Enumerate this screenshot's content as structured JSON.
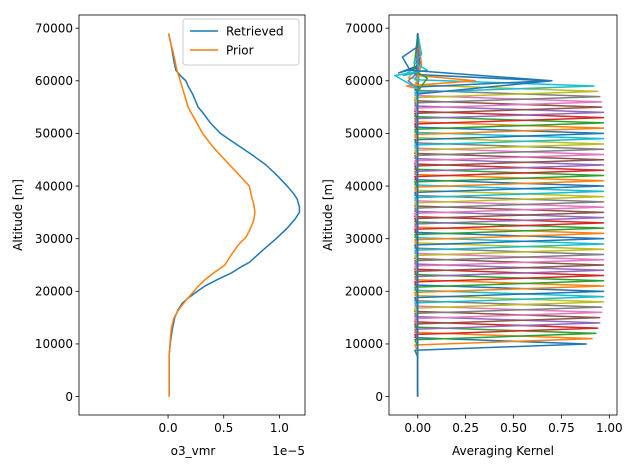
{
  "chart_data": [
    {
      "type": "line",
      "xlabel": "o3_vmr",
      "ylabel": "Altitude [m]",
      "x_scale_label": "1e−5",
      "xlim": [
        -8e-06,
        1.23e-05
      ],
      "ylim": [
        -3500,
        72500
      ],
      "xticks": [
        0,
        5e-06,
        1e-05
      ],
      "xtick_labels": [
        "0.0",
        "0.5",
        "1.0"
      ],
      "yticks": [
        0,
        10000,
        20000,
        30000,
        40000,
        50000,
        60000,
        70000
      ],
      "ytick_labels": [
        "0",
        "10000",
        "20000",
        "30000",
        "40000",
        "50000",
        "60000",
        "70000"
      ],
      "legend_position": "upper right",
      "series": [
        {
          "name": "Retrieved",
          "color": "#1f77b4",
          "points": [
            [
              1e-07,
              0
            ],
            [
              1e-07,
              8000
            ],
            [
              1.5e-07,
              9000
            ],
            [
              2.5e-07,
              11000
            ],
            [
              4e-07,
              13000
            ],
            [
              6e-07,
              15000
            ],
            [
              9e-07,
              16500
            ],
            [
              1.3e-06,
              17800
            ],
            [
              1.8e-06,
              18700
            ],
            [
              2.5e-06,
              19800
            ],
            [
              3.3e-06,
              21000
            ],
            [
              4.5e-06,
              22300
            ],
            [
              5.7e-06,
              23500
            ],
            [
              6.6e-06,
              24700
            ],
            [
              7.3e-06,
              25500
            ],
            [
              8.5e-06,
              27800
            ],
            [
              9.7e-06,
              30000
            ],
            [
              1.07e-05,
              32000
            ],
            [
              1.14e-05,
              33700
            ],
            [
              1.18e-05,
              35000
            ],
            [
              1.18e-05,
              36000
            ],
            [
              1.16e-05,
              37500
            ],
            [
              1.13e-05,
              38500
            ],
            [
              1.07e-05,
              40000
            ],
            [
              9.8e-06,
              42000
            ],
            [
              8.8e-06,
              44000
            ],
            [
              7.5e-06,
              46000
            ],
            [
              6.1e-06,
              48000
            ],
            [
              4.7e-06,
              50000
            ],
            [
              3.8e-06,
              52000
            ],
            [
              3.1e-06,
              54000
            ],
            [
              2.7e-06,
              55000
            ],
            [
              2.2e-06,
              57500
            ],
            [
              1.8e-06,
              59000
            ],
            [
              1.6e-06,
              60000
            ],
            [
              1.1e-06,
              61000
            ],
            [
              7e-07,
              62000
            ],
            [
              5e-07,
              64000
            ],
            [
              3e-07,
              66500
            ],
            [
              5e-08,
              69000
            ]
          ]
        },
        {
          "name": "Prior",
          "color": "#ff7f0e",
          "points": [
            [
              1e-07,
              0
            ],
            [
              1e-07,
              8000
            ],
            [
              1.5e-07,
              9000
            ],
            [
              2e-07,
              11000
            ],
            [
              3e-07,
              13000
            ],
            [
              5e-07,
              14800
            ],
            [
              8e-07,
              16000
            ],
            [
              1.2e-06,
              17200
            ],
            [
              1.7e-06,
              18500
            ],
            [
              2.2e-06,
              19700
            ],
            [
              2.6e-06,
              20700
            ],
            [
              3.2e-06,
              22000
            ],
            [
              4.1e-06,
              23500
            ],
            [
              5.1e-06,
              25000
            ],
            [
              5.7e-06,
              27000
            ],
            [
              6.3e-06,
              28800
            ],
            [
              7e-06,
              30300
            ],
            [
              7.3e-06,
              31500
            ],
            [
              7.7e-06,
              33500
            ],
            [
              7.8e-06,
              35000
            ],
            [
              7.7e-06,
              36500
            ],
            [
              7.5e-06,
              38000
            ],
            [
              7.3e-06,
              40000
            ],
            [
              6.2e-06,
              42500
            ],
            [
              5.1e-06,
              45000
            ],
            [
              4e-06,
              47500
            ],
            [
              3.1e-06,
              50000
            ],
            [
              1.8e-06,
              55000
            ],
            [
              1.1e-06,
              60000
            ],
            [
              8e-07,
              62000
            ],
            [
              5e-07,
              65000
            ],
            [
              2e-07,
              67500
            ],
            [
              5e-08,
              69000
            ]
          ]
        }
      ]
    },
    {
      "type": "line",
      "xlabel": "Averaging Kernel",
      "ylabel": "Altitude [m]",
      "xlim": [
        -0.15,
        1.04
      ],
      "ylim": [
        -3500,
        72500
      ],
      "xticks": [
        0,
        0.25,
        0.5,
        0.75,
        1.0
      ],
      "xtick_labels": [
        "0.00",
        "0.25",
        "0.50",
        "0.75",
        "1.00"
      ],
      "yticks": [
        0,
        10000,
        20000,
        30000,
        40000,
        50000,
        60000,
        70000
      ],
      "ytick_labels": [
        "0",
        "10000",
        "20000",
        "30000",
        "40000",
        "50000",
        "60000",
        "70000"
      ],
      "color_cycle": [
        "#1f77b4",
        "#ff7f0e",
        "#2ca02c",
        "#d62728",
        "#9467bd",
        "#8c564b",
        "#e377c2",
        "#7f7f7f",
        "#bcbd22",
        "#17becf"
      ],
      "altitude_levels": [
        0,
        69000
      ],
      "kernel_peak_altitudes": [
        10000,
        11000,
        12000,
        13000,
        14000,
        15000,
        16000,
        17000,
        18000,
        19000,
        20000,
        21000,
        22000,
        23000,
        24000,
        25000,
        26000,
        27000,
        28000,
        29000,
        30000,
        31000,
        32000,
        33000,
        34000,
        35000,
        36000,
        37000,
        38000,
        39000,
        40000,
        41000,
        42000,
        43000,
        44000,
        45000,
        46000,
        47000,
        48000,
        49000,
        50000,
        51000,
        52000,
        53000,
        54000,
        55000,
        56000,
        57000,
        58000,
        59000,
        60000
      ],
      "kernel_peak_values": [
        0.88,
        0.91,
        0.93,
        0.94,
        0.95,
        0.95,
        0.96,
        0.96,
        0.97,
        0.97,
        0.97,
        0.97,
        0.97,
        0.97,
        0.97,
        0.97,
        0.97,
        0.97,
        0.97,
        0.97,
        0.97,
        0.97,
        0.97,
        0.97,
        0.97,
        0.97,
        0.97,
        0.97,
        0.97,
        0.97,
        0.97,
        0.97,
        0.97,
        0.97,
        0.97,
        0.97,
        0.97,
        0.97,
        0.97,
        0.97,
        0.97,
        0.97,
        0.97,
        0.97,
        0.97,
        0.96,
        0.96,
        0.95,
        0.94,
        0.92,
        0.68
      ]
    }
  ]
}
